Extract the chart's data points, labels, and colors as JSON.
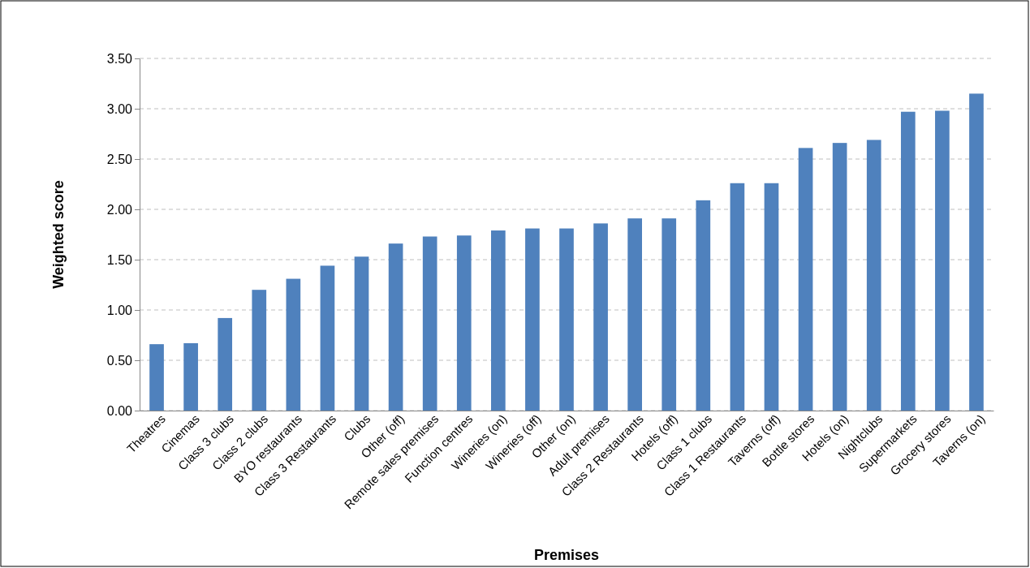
{
  "chart_data": {
    "type": "bar",
    "xlabel": "Premises",
    "ylabel": "Weighted score",
    "categories": [
      "Theatres",
      "Cinemas",
      "Class 3 clubs",
      "Class 2 clubs",
      "BYO restaurants",
      "Class 3 Restaurants",
      "Clubs",
      "Other (off)",
      "Remote sales premises",
      "Function centres",
      "Wineries (on)",
      "Wineries (off)",
      "Other (on)",
      "Adult premises",
      "Class 2 Restaurants",
      "Hotels (off)",
      "Class 1 clubs",
      "Class 1 Restaurants",
      "Taverns (off)",
      "Bottle stores",
      "Hotels (on)",
      "Nightclubs",
      "Supermarkets",
      "Grocery stores",
      "Taverns (on)"
    ],
    "values": [
      0.66,
      0.67,
      0.92,
      1.2,
      1.31,
      1.44,
      1.53,
      1.66,
      1.73,
      1.74,
      1.79,
      1.81,
      1.81,
      1.86,
      1.91,
      1.91,
      2.09,
      2.26,
      2.26,
      2.61,
      2.66,
      2.69,
      2.97,
      2.98,
      3.15
    ],
    "color": "#4f81bd",
    "ylim": [
      0,
      3.5
    ],
    "yticks": [
      {
        "value": 0,
        "label": "0.00"
      },
      {
        "value": 0.5,
        "label": "0.50"
      },
      {
        "value": 1,
        "label": "1.00"
      },
      {
        "value": 1.5,
        "label": "1.50"
      },
      {
        "value": 2,
        "label": "2.00"
      },
      {
        "value": 2.5,
        "label": "2.50"
      },
      {
        "value": 3,
        "label": "3.00"
      },
      {
        "value": 3.5,
        "label": "3.50"
      }
    ],
    "grid": "y"
  }
}
